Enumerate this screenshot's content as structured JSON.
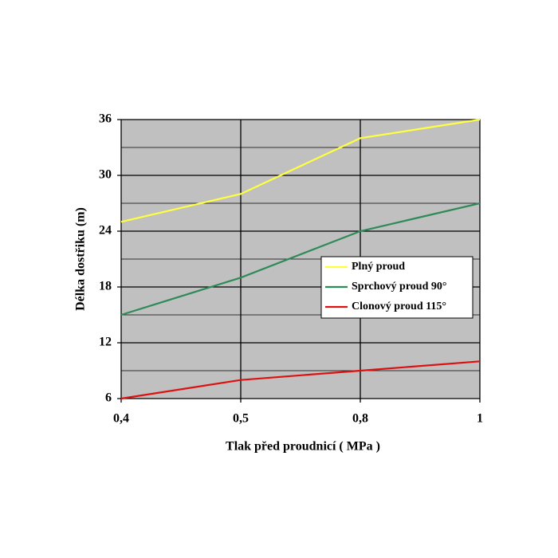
{
  "chart_data": {
    "type": "line",
    "xlabel": "Tlak před proudnicí  ( MPa )",
    "ylabel": "Délka dostřiku (m)",
    "categories": [
      "0,4",
      "0,5",
      "0,8",
      "1"
    ],
    "series": [
      {
        "name": "Plný proud",
        "color": "#ffff40",
        "values": [
          25,
          28,
          34,
          36
        ]
      },
      {
        "name": "Sprchový proud 90°",
        "color": "#2e8b57",
        "values": [
          15,
          19,
          24,
          27
        ]
      },
      {
        "name": "Clonový proud 115°",
        "color": "#dd1111",
        "values": [
          6,
          8,
          9,
          10
        ]
      }
    ],
    "ylim": [
      6,
      36
    ],
    "yticks": [
      6,
      12,
      18,
      24,
      30,
      36
    ],
    "yminorticks": [
      9,
      15,
      21,
      27,
      33
    ],
    "grid": true,
    "legend": "right",
    "background": "#c0c0c0"
  }
}
